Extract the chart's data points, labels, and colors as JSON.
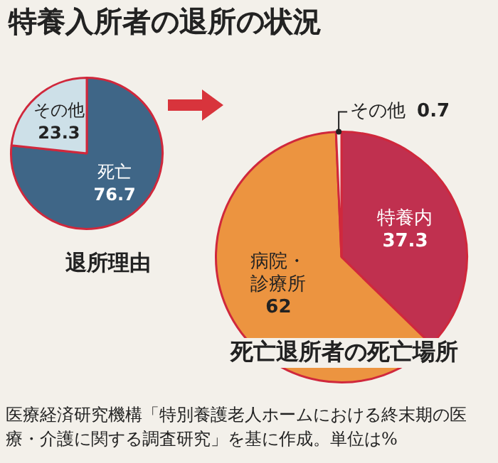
{
  "chart_data": [
    {
      "type": "pie",
      "title": "特養入所者の退所の状況",
      "subtitle": "退所理由",
      "categories": [
        "死亡",
        "その他"
      ],
      "values": [
        76.7,
        23.3
      ],
      "colors": [
        "#3f6687",
        "#cde0e8"
      ],
      "data_labels": true,
      "legend": false
    },
    {
      "type": "pie",
      "subtitle": "死亡退所者の死亡場所",
      "categories": [
        "特養内",
        "病院・診療所",
        "その他"
      ],
      "values": [
        37.3,
        62,
        0.7
      ],
      "colors": [
        "#c0304f",
        "#ec9440",
        "#f3f0ea"
      ],
      "data_labels": true,
      "legend": false,
      "annotations": [
        "医療経済研究機構「特別養護老人ホームにおける終末期の医療・介護に関する調査研究」を基に作成。単位は%"
      ]
    }
  ]
}
